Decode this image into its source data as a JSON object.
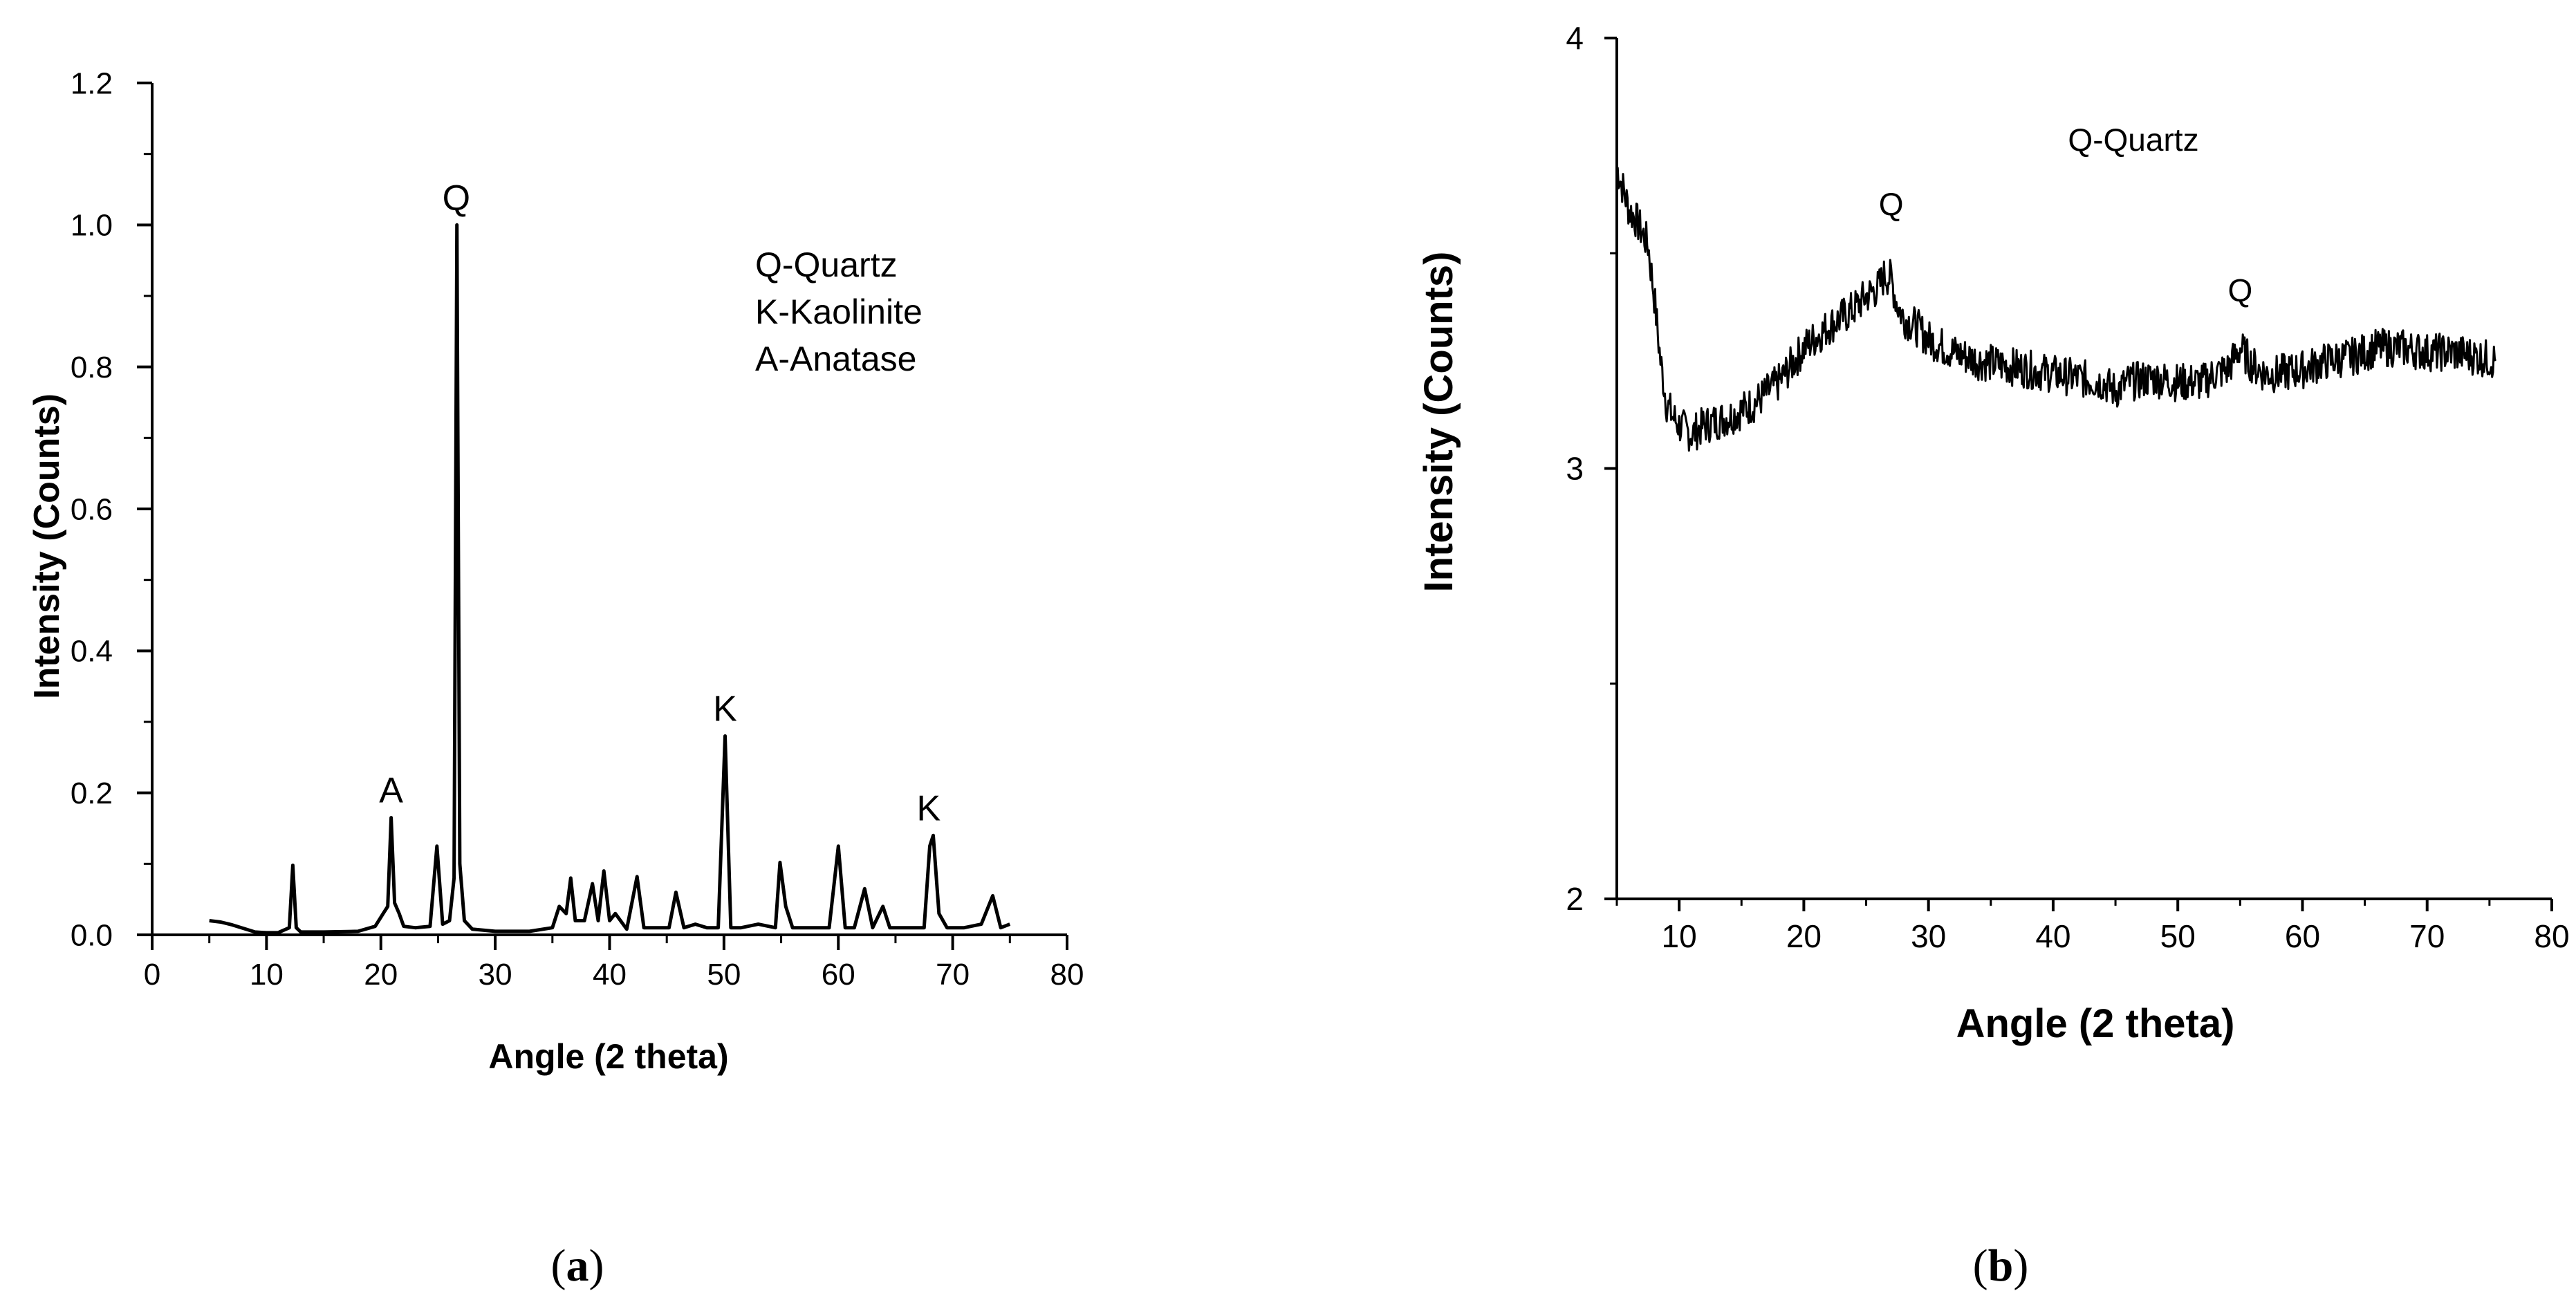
{
  "chart_data": [
    {
      "type": "line",
      "panel_label": "(a)",
      "panel_letter": "a",
      "xlabel": "Angle (2 theta)",
      "ylabel": "Intensity (Counts)",
      "xlim": [
        0,
        80
      ],
      "ylim": [
        0,
        1.2
      ],
      "xticks": [
        "0",
        "10",
        "20",
        "30",
        "40",
        "50",
        "60",
        "70",
        "80"
      ],
      "yticks": [
        "0.0",
        "0.2",
        "0.4",
        "0.6",
        "0.8",
        "1.0",
        "1.2"
      ],
      "grid": false,
      "legend_text": [
        "Q-Quartz",
        "K-Kaolinite",
        "A-Anatase"
      ],
      "legend_position": "top-right",
      "annotations": [
        {
          "text": "Q",
          "x": 26.6,
          "y": 1.0
        },
        {
          "text": "A",
          "x": 20.9,
          "y": 0.165
        },
        {
          "text": "K",
          "x": 50.1,
          "y": 0.28
        },
        {
          "text": "K",
          "x": 67.9,
          "y": 0.14
        }
      ],
      "series": [
        {
          "x": [
            5,
            6,
            7,
            8,
            9,
            10,
            11,
            12,
            12.3,
            12.6,
            13,
            15,
            18,
            19.5,
            20.2,
            20.6,
            20.9,
            21.2,
            21.6,
            22,
            23,
            24.3,
            24.9,
            25.4,
            26,
            26.4,
            26.65,
            26.9,
            27.3,
            28,
            30,
            33,
            35,
            35.6,
            36.2,
            36.6,
            37,
            37.8,
            38.5,
            39,
            39.5,
            40,
            40.5,
            41.5,
            42.4,
            43,
            44,
            45.2,
            45.8,
            46.5,
            47.5,
            48.5,
            49.5,
            50.1,
            50.6,
            51.5,
            53,
            54.5,
            54.9,
            55.4,
            56,
            57.5,
            59.2,
            60,
            60.6,
            61.4,
            62.3,
            63,
            63.9,
            64.5,
            65.5,
            66.5,
            67.5,
            68,
            68.3,
            68.8,
            69.5,
            71,
            72.5,
            73.5,
            74.2,
            75
          ],
          "y": [
            0.02,
            0.018,
            0.014,
            0.009,
            0.004,
            0.003,
            0.003,
            0.01,
            0.098,
            0.01,
            0.004,
            0.004,
            0.005,
            0.012,
            0.03,
            0.04,
            0.165,
            0.045,
            0.03,
            0.012,
            0.01,
            0.012,
            0.125,
            0.015,
            0.02,
            0.08,
            1.0,
            0.1,
            0.02,
            0.008,
            0.005,
            0.005,
            0.01,
            0.04,
            0.03,
            0.08,
            0.02,
            0.02,
            0.072,
            0.02,
            0.09,
            0.02,
            0.03,
            0.008,
            0.082,
            0.01,
            0.01,
            0.01,
            0.06,
            0.01,
            0.015,
            0.01,
            0.01,
            0.28,
            0.01,
            0.01,
            0.015,
            0.01,
            0.102,
            0.04,
            0.01,
            0.01,
            0.01,
            0.125,
            0.01,
            0.01,
            0.065,
            0.01,
            0.04,
            0.01,
            0.01,
            0.01,
            0.01,
            0.125,
            0.14,
            0.03,
            0.01,
            0.01,
            0.015,
            0.055,
            0.01,
            0.015
          ]
        }
      ]
    },
    {
      "type": "line",
      "panel_label": "(b)",
      "panel_letter": "b",
      "xlabel": "Angle (2 theta)",
      "ylabel": "Intensity (Counts)",
      "xlim": [
        5,
        80
      ],
      "ylim": [
        2,
        4
      ],
      "xticks": [
        "10",
        "20",
        "30",
        "40",
        "50",
        "60",
        "70",
        "80"
      ],
      "yticks": [
        "2",
        "3",
        "4"
      ],
      "grid": false,
      "legend_text": [
        "Q-Quartz"
      ],
      "legend_position": "top-center",
      "annotations": [
        {
          "text": "Q",
          "x": 27.0,
          "y": 3.55
        },
        {
          "text": "Q",
          "x": 55.0,
          "y": 3.35
        }
      ],
      "series": [
        {
          "x": [
            5,
            5.5,
            6,
            6.5,
            7,
            7.5,
            8,
            8.5,
            9,
            9.5,
            10,
            11,
            12,
            14,
            16,
            18,
            20,
            22,
            24,
            25,
            26,
            26.5,
            27,
            27.5,
            28,
            29,
            30,
            32,
            34,
            36,
            38,
            40,
            42,
            44,
            45,
            46,
            48,
            50,
            52,
            53,
            54,
            55,
            56,
            57,
            58,
            60,
            62,
            64,
            66,
            68,
            70,
            72,
            74,
            75.5
          ],
          "y": [
            3.7,
            3.65,
            3.6,
            3.58,
            3.55,
            3.52,
            3.4,
            3.25,
            3.15,
            3.12,
            3.1,
            3.08,
            3.1,
            3.12,
            3.15,
            3.2,
            3.28,
            3.33,
            3.37,
            3.4,
            3.42,
            3.45,
            3.44,
            3.38,
            3.35,
            3.33,
            3.3,
            3.27,
            3.25,
            3.24,
            3.23,
            3.22,
            3.21,
            3.2,
            3.18,
            3.2,
            3.21,
            3.2,
            3.2,
            3.22,
            3.23,
            3.28,
            3.24,
            3.22,
            3.22,
            3.23,
            3.25,
            3.26,
            3.28,
            3.28,
            3.27,
            3.27,
            3.26,
            3.25
          ]
        }
      ]
    }
  ]
}
